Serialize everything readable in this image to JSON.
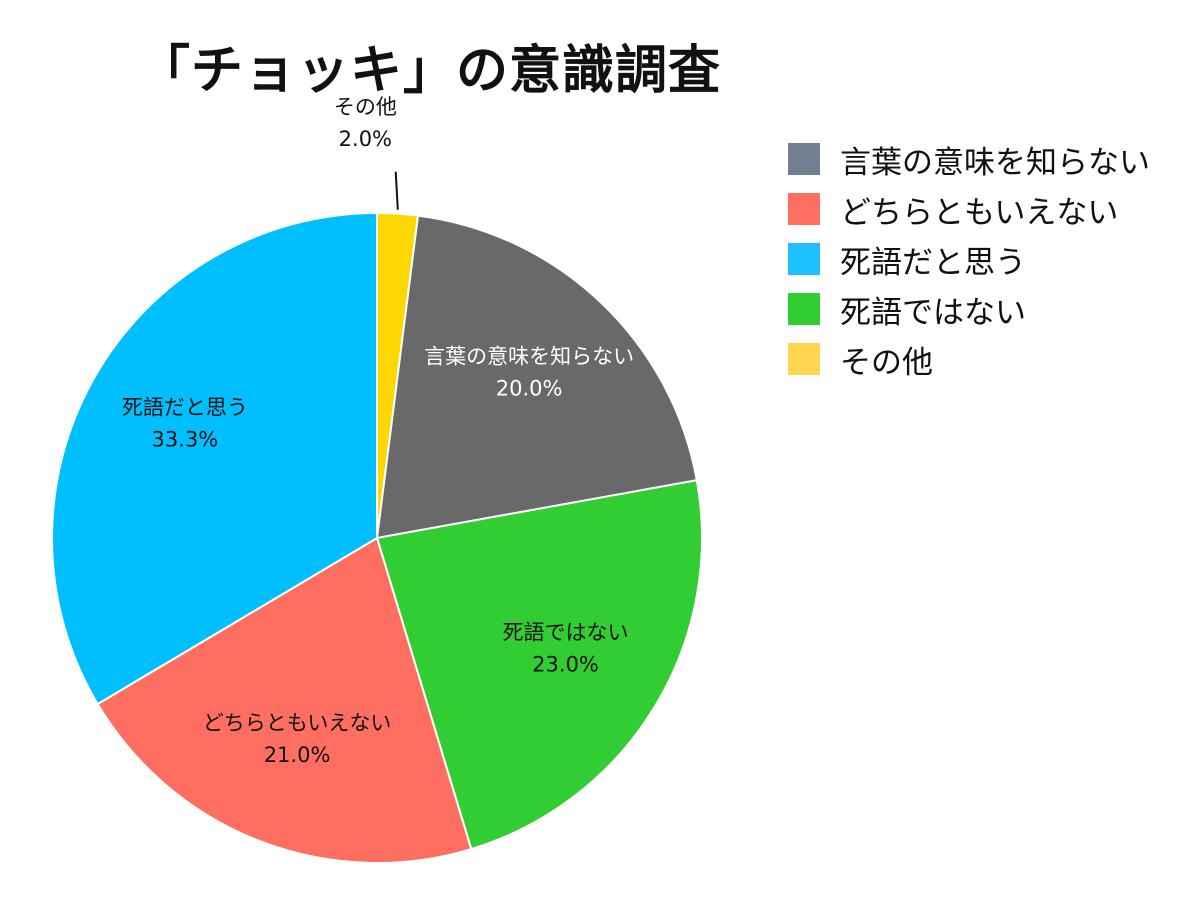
{
  "chart_data": {
    "type": "pie",
    "title": "「チョッキ」の意識調査",
    "legend_position": "right",
    "slices": [
      {
        "name": "その他",
        "value": 2.0,
        "label": "2.0%",
        "color": "#FFD700",
        "legend_color": "#FFD54F"
      },
      {
        "name": "言葉の意味を知らない",
        "value": 20.0,
        "label": "20.0%",
        "color": "#696969",
        "legend_color": "#708090"
      },
      {
        "name": "死語ではない",
        "value": 23.0,
        "label": "23.0%",
        "color": "#32CD32",
        "legend_color": "#32CD32"
      },
      {
        "name": "どちらともいえない",
        "value": 21.0,
        "label": "21.0%",
        "color": "#FF6F61",
        "legend_color": "#FF6F61"
      },
      {
        "name": "死語だと思う",
        "value": 33.3,
        "label": "33.3%",
        "color": "#00BFFF",
        "legend_color": "#1EC0FF"
      }
    ],
    "legend": [
      "言葉の意味を知らない",
      "どちらともいえない",
      "死語だと思う",
      "死語ではない",
      "その他"
    ]
  }
}
